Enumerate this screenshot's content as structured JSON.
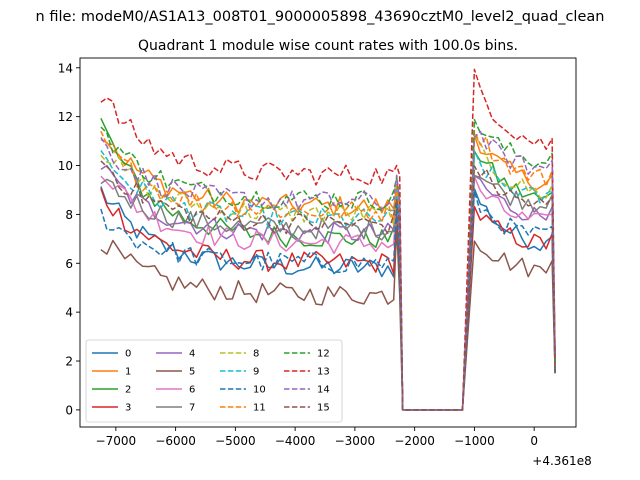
{
  "suptitle": "n file: modeM0/AS1A13_008T01_9000005898_43690cztM0_level2_quad_clean",
  "chart_data": {
    "type": "line",
    "title": "Quadrant 1 module wise count rates with 100.0s bins.",
    "xlabel": "",
    "ylabel": "",
    "x_offset_label": "+4.361e8",
    "xlim": [
      -7600,
      700
    ],
    "ylim": [
      -0.7,
      14.4
    ],
    "xticks": [
      -7000,
      -6000,
      -5000,
      -4000,
      -3000,
      -2000,
      -1000,
      0
    ],
    "xtick_labels": [
      "−7000",
      "−6000",
      "−5000",
      "−4000",
      "−3000",
      "−2000",
      "−1000",
      "0"
    ],
    "yticks": [
      0,
      2,
      4,
      6,
      8,
      10,
      12,
      14
    ],
    "ytick_labels": [
      "0",
      "2",
      "4",
      "6",
      "8",
      "10",
      "12",
      "14"
    ],
    "grid": false,
    "legend_position": "lower-left",
    "legend_columns": 4,
    "segments": [
      {
        "x_start": -7250,
        "x_end": -2350,
        "step": 100
      },
      {
        "x_start": -1000,
        "x_end": 200,
        "step": 100
      }
    ],
    "gap_samples": {
      "x": [
        -2200,
        -1200
      ],
      "value": 0
    },
    "end_drop": {
      "x": 350,
      "value_range": [
        1.5,
        2.5
      ]
    },
    "series": [
      {
        "name": "0",
        "color": "#1f77b4",
        "dash": "solid",
        "start": 9.0,
        "plateau": 5.8,
        "spike": 8.6,
        "peak": 8.9,
        "end": 6.5
      },
      {
        "name": "1",
        "color": "#ff7f0e",
        "dash": "solid",
        "start": 11.5,
        "plateau": 8.3,
        "spike": 9.2,
        "peak": 11.3,
        "end": 9.0
      },
      {
        "name": "2",
        "color": "#2ca02c",
        "dash": "solid",
        "start": 11.8,
        "plateau": 7.0,
        "spike": 8.8,
        "peak": 10.8,
        "end": 8.3
      },
      {
        "name": "3",
        "color": "#d62728",
        "dash": "solid",
        "start": 8.9,
        "plateau": 6.0,
        "spike": 8.3,
        "peak": 8.2,
        "end": 6.6
      },
      {
        "name": "4",
        "color": "#9467bd",
        "dash": "solid",
        "start": 10.0,
        "plateau": 7.2,
        "spike": 9.0,
        "peak": 9.6,
        "end": 7.7
      },
      {
        "name": "5",
        "color": "#8c564b",
        "dash": "solid",
        "start": 7.0,
        "plateau": 4.7,
        "spike": 7.5,
        "peak": 7.1,
        "end": 5.5
      },
      {
        "name": "6",
        "color": "#e377c2",
        "dash": "solid",
        "start": 10.0,
        "plateau": 6.8,
        "spike": 8.7,
        "peak": 9.3,
        "end": 7.4
      },
      {
        "name": "7",
        "color": "#7f7f7f",
        "dash": "solid",
        "start": 9.6,
        "plateau": 7.4,
        "spike": 8.7,
        "peak": 9.9,
        "end": 8.2
      },
      {
        "name": "8",
        "color": "#bcbd22",
        "dash": "dashed",
        "start": 10.8,
        "plateau": 8.0,
        "spike": 9.1,
        "peak": 10.9,
        "end": 8.6
      },
      {
        "name": "9",
        "color": "#17becf",
        "dash": "dashed",
        "start": 10.5,
        "plateau": 7.8,
        "spike": 9.0,
        "peak": 10.4,
        "end": 8.4
      },
      {
        "name": "10",
        "color": "#1f77b4",
        "dash": "dashed",
        "start": 8.0,
        "plateau": 6.0,
        "spike": 8.4,
        "peak": 8.6,
        "end": 6.9
      },
      {
        "name": "11",
        "color": "#ff7f0e",
        "dash": "dashed",
        "start": 11.2,
        "plateau": 8.1,
        "spike": 9.3,
        "peak": 11.6,
        "end": 9.2
      },
      {
        "name": "12",
        "color": "#2ca02c",
        "dash": "dashed",
        "start": 11.6,
        "plateau": 8.6,
        "spike": 9.5,
        "peak": 11.9,
        "end": 9.9
      },
      {
        "name": "13",
        "color": "#d62728",
        "dash": "dashed",
        "start": 13.0,
        "plateau": 9.6,
        "spike": 10.0,
        "peak": 13.6,
        "end": 10.5
      },
      {
        "name": "14",
        "color": "#9467bd",
        "dash": "dashed",
        "start": 11.0,
        "plateau": 8.5,
        "spike": 9.6,
        "peak": 11.5,
        "end": 9.6
      },
      {
        "name": "15",
        "color": "#8c564b",
        "dash": "dashed",
        "start": 10.3,
        "plateau": 7.6,
        "spike": 8.6,
        "peak": 10.1,
        "end": 8.1
      }
    ]
  }
}
